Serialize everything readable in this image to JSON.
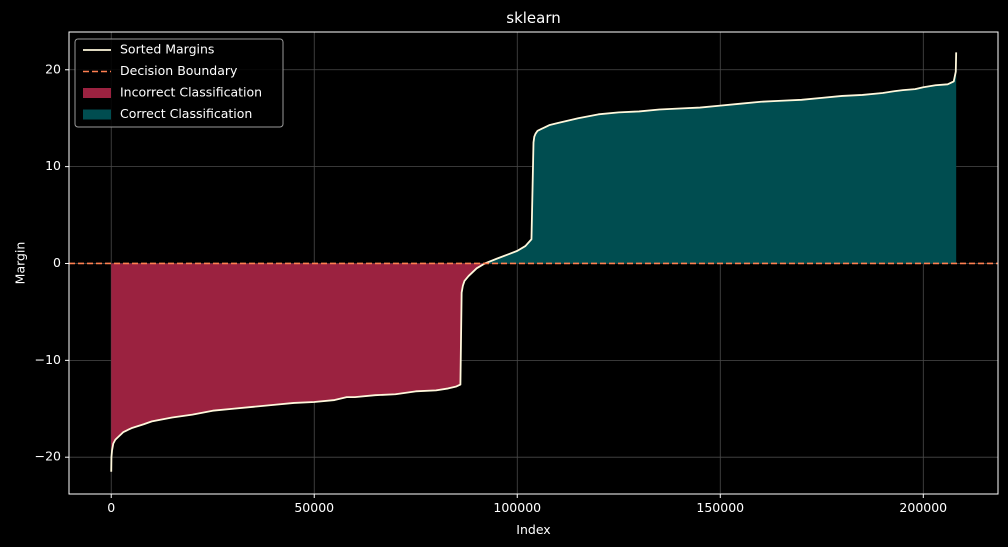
{
  "chart_data": {
    "type": "area",
    "title": "sklearn",
    "xlabel": "Index",
    "ylabel": "Margin",
    "xlim": [
      -10400,
      218400
    ],
    "ylim": [
      -23.8,
      23.9
    ],
    "grid": true,
    "legend_position": "top-left",
    "xticks": [
      0,
      50000,
      100000,
      150000,
      200000
    ],
    "xtick_labels": [
      "0",
      "50000",
      "100000",
      "150000",
      "200000"
    ],
    "yticks": [
      -20,
      -10,
      0,
      10,
      20
    ],
    "ytick_labels": [
      "−20",
      "−10",
      "0",
      "10",
      "20"
    ],
    "colors": {
      "line": "#fff8dc",
      "boundary": "#ff7f50",
      "incorrect_fill": "#9b2240",
      "correct_fill": "#004d50",
      "grid": "#4a4a4a",
      "axes": "#ffffff"
    },
    "series": [
      {
        "name": "Sorted Margins",
        "x": [
          0,
          50,
          200,
          500,
          1000,
          2000,
          3000,
          5000,
          8000,
          10000,
          15000,
          20000,
          25000,
          30000,
          35000,
          40000,
          45000,
          50000,
          55000,
          58000,
          60000,
          65000,
          70000,
          75000,
          80000,
          83000,
          85000,
          86000,
          86300,
          86600,
          87000,
          88000,
          90000,
          92000,
          95000,
          100000,
          102000,
          103500,
          104000,
          104200,
          104500,
          105000,
          106000,
          108000,
          110000,
          115000,
          120000,
          125000,
          130000,
          135000,
          140000,
          145000,
          150000,
          155000,
          160000,
          165000,
          170000,
          175000,
          180000,
          185000,
          190000,
          193000,
          195000,
          198000,
          200000,
          203000,
          206000,
          207500,
          208000,
          208100
        ],
        "y": [
          -21.5,
          -20.0,
          -19.3,
          -18.6,
          -18.2,
          -17.8,
          -17.4,
          -17.0,
          -16.6,
          -16.3,
          -15.9,
          -15.6,
          -15.2,
          -15.0,
          -14.8,
          -14.6,
          -14.4,
          -14.3,
          -14.1,
          -13.8,
          -13.8,
          -13.6,
          -13.5,
          -13.2,
          -13.1,
          -12.9,
          -12.7,
          -12.5,
          -3.0,
          -2.3,
          -1.8,
          -1.3,
          -0.5,
          0.0,
          0.5,
          1.3,
          1.8,
          2.5,
          12.5,
          13.1,
          13.4,
          13.7,
          13.9,
          14.3,
          14.5,
          15.0,
          15.4,
          15.6,
          15.7,
          15.9,
          16.0,
          16.1,
          16.3,
          16.5,
          16.7,
          16.8,
          16.9,
          17.1,
          17.3,
          17.4,
          17.6,
          17.8,
          17.9,
          18.0,
          18.2,
          18.4,
          18.5,
          18.8,
          19.8,
          21.8
        ]
      },
      {
        "name": "Decision Boundary",
        "y": 0
      },
      {
        "name": "Incorrect Classification",
        "x_range": [
          0,
          92000
        ]
      },
      {
        "name": "Correct Classification",
        "x_range": [
          92000,
          208100
        ]
      }
    ]
  }
}
